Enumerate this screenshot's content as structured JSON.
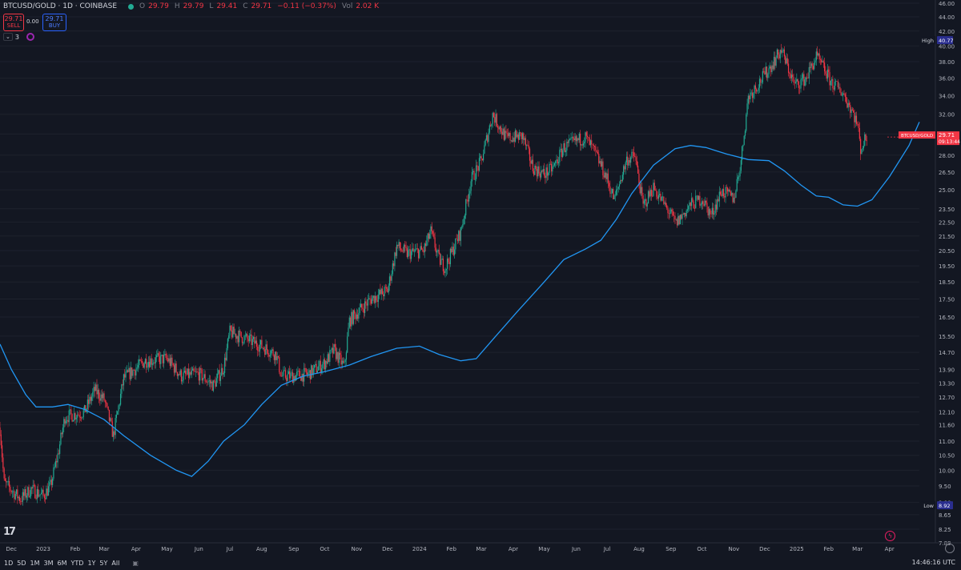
{
  "header": {
    "symbol": "BTCUSD/GOLD · 1D · COINBASE",
    "o_label": "O",
    "o_value": "29.79",
    "h_label": "H",
    "h_value": "29.79",
    "l_label": "L",
    "l_value": "29.41",
    "c_label": "C",
    "c_value": "29.71",
    "change": "−0.11 (−0.37%)",
    "vol_label": "Vol",
    "vol_value": "2.02 K"
  },
  "trade": {
    "sell_price": "29.71",
    "sell_label": "SELL",
    "spread": "0.00",
    "buy_price": "29.71",
    "buy_label": "BUY"
  },
  "indicators": {
    "count": "3"
  },
  "price_axis": {
    "labels": [
      "46.00",
      "44.00",
      "42.00",
      "40.00",
      "38.00",
      "36.00",
      "34.00",
      "32.00",
      "30.00",
      "28.00",
      "26.50",
      "25.00",
      "23.50",
      "22.50",
      "21.50",
      "20.50",
      "19.50",
      "18.50",
      "17.50",
      "16.50",
      "15.50",
      "14.70",
      "13.90",
      "13.30",
      "12.70",
      "12.10",
      "11.60",
      "11.00",
      "10.50",
      "10.00",
      "9.50",
      "9.00",
      "8.65",
      "8.25",
      "7.89"
    ],
    "high_label": "High",
    "high_value": "40.77",
    "low_label": "Low",
    "low_value": "8.92",
    "current_symbol": "BTCUSD/GOLD",
    "current_value": "29.71",
    "current_countdown": "09:13:44"
  },
  "time_axis": [
    "Dec",
    "2023",
    "Feb",
    "Mar",
    "Apr",
    "May",
    "Jun",
    "Jul",
    "Aug",
    "Sep",
    "Oct",
    "Nov",
    "Dec",
    "2024",
    "Feb",
    "Mar",
    "Apr",
    "May",
    "Jun",
    "Jul",
    "Aug",
    "Sep",
    "Oct",
    "Nov",
    "Dec",
    "2025",
    "Feb",
    "Mar",
    "Apr"
  ],
  "timeframes": [
    "1D",
    "5D",
    "1M",
    "3M",
    "6M",
    "YTD",
    "1Y",
    "5Y",
    "All"
  ],
  "clock": "14:46:16 UTC",
  "colors": {
    "up": "#22ab94",
    "down": "#f23645",
    "ma": "#2196f3",
    "bg": "#131722"
  },
  "chart_data": {
    "type": "candlestick",
    "scale": "log",
    "ylim": [
      7.89,
      46.0
    ],
    "x_range": [
      "2022-11-20",
      "2025-04-30"
    ],
    "price_path": [
      [
        "2022-11-20",
        11.5
      ],
      [
        "2022-11-24",
        9.6
      ],
      [
        "2022-12-10",
        9.1
      ],
      [
        "2022-12-20",
        9.4
      ],
      [
        "2023-01-01",
        9.2
      ],
      [
        "2023-01-08",
        9.5
      ],
      [
        "2023-01-15",
        10.5
      ],
      [
        "2023-01-22",
        11.9
      ],
      [
        "2023-02-10",
        12.1
      ],
      [
        "2023-02-20",
        13.0
      ],
      [
        "2023-03-01",
        12.6
      ],
      [
        "2023-03-10",
        11.2
      ],
      [
        "2023-03-20",
        13.5
      ],
      [
        "2023-04-10",
        14.3
      ],
      [
        "2023-05-01",
        14.4
      ],
      [
        "2023-05-15",
        13.6
      ],
      [
        "2023-06-01",
        13.7
      ],
      [
        "2023-06-15",
        13.2
      ],
      [
        "2023-06-25",
        14.0
      ],
      [
        "2023-07-01",
        15.7
      ],
      [
        "2023-07-15",
        15.4
      ],
      [
        "2023-08-01",
        15.0
      ],
      [
        "2023-08-15",
        14.6
      ],
      [
        "2023-08-20",
        13.6
      ],
      [
        "2023-09-01",
        13.6
      ],
      [
        "2023-09-15",
        13.7
      ],
      [
        "2023-10-01",
        14.2
      ],
      [
        "2023-10-10",
        14.8
      ],
      [
        "2023-10-20",
        14.0
      ],
      [
        "2023-10-25",
        16.3
      ],
      [
        "2023-11-01",
        16.7
      ],
      [
        "2023-11-15",
        17.5
      ],
      [
        "2023-12-01",
        18.0
      ],
      [
        "2023-12-10",
        20.8
      ],
      [
        "2023-12-20",
        20.3
      ],
      [
        "2024-01-05",
        20.5
      ],
      [
        "2024-01-12",
        21.8
      ],
      [
        "2024-01-20",
        19.9
      ],
      [
        "2024-01-26",
        19.4
      ],
      [
        "2024-02-10",
        21.8
      ],
      [
        "2024-02-20",
        25.8
      ],
      [
        "2024-03-01",
        27.5
      ],
      [
        "2024-03-12",
        32.0
      ],
      [
        "2024-03-25",
        29.6
      ],
      [
        "2024-04-10",
        29.8
      ],
      [
        "2024-04-20",
        26.9
      ],
      [
        "2024-05-01",
        26.3
      ],
      [
        "2024-05-10",
        26.9
      ],
      [
        "2024-05-20",
        28.7
      ],
      [
        "2024-06-01",
        29.3
      ],
      [
        "2024-06-10",
        29.7
      ],
      [
        "2024-06-20",
        28.1
      ],
      [
        "2024-07-01",
        25.9
      ],
      [
        "2024-07-08",
        24.2
      ],
      [
        "2024-07-20",
        27.6
      ],
      [
        "2024-07-28",
        27.9
      ],
      [
        "2024-08-05",
        23.7
      ],
      [
        "2024-08-15",
        25.2
      ],
      [
        "2024-08-25",
        23.9
      ],
      [
        "2024-09-06",
        22.4
      ],
      [
        "2024-09-20",
        23.8
      ],
      [
        "2024-10-01",
        24.3
      ],
      [
        "2024-10-10",
        23.0
      ],
      [
        "2024-10-20",
        24.9
      ],
      [
        "2024-11-01",
        24.3
      ],
      [
        "2024-11-08",
        27.5
      ],
      [
        "2024-11-15",
        33.9
      ],
      [
        "2024-11-25",
        35.4
      ],
      [
        "2024-12-05",
        37.1
      ],
      [
        "2024-12-17",
        39.5
      ],
      [
        "2024-12-30",
        35.2
      ],
      [
        "2025-01-10",
        36.0
      ],
      [
        "2025-01-20",
        38.6
      ],
      [
        "2025-01-28",
        37.0
      ],
      [
        "2025-02-03",
        35.6
      ],
      [
        "2025-02-15",
        34.3
      ],
      [
        "2025-02-25",
        32.1
      ],
      [
        "2025-03-01",
        30.9
      ],
      [
        "2025-03-04",
        28.6
      ],
      [
        "2025-03-10",
        29.71
      ]
    ],
    "moving_average": [
      [
        "2022-11-20",
        15.1
      ],
      [
        "2022-12-01",
        13.9
      ],
      [
        "2022-12-15",
        12.8
      ],
      [
        "2022-12-25",
        12.3
      ],
      [
        "2023-01-10",
        12.3
      ],
      [
        "2023-01-25",
        12.4
      ],
      [
        "2023-02-10",
        12.2
      ],
      [
        "2023-03-01",
        11.8
      ],
      [
        "2023-03-20",
        11.2
      ],
      [
        "2023-04-15",
        10.5
      ],
      [
        "2023-05-10",
        10.0
      ],
      [
        "2023-05-25",
        9.8
      ],
      [
        "2023-06-10",
        10.3
      ],
      [
        "2023-06-25",
        11.0
      ],
      [
        "2023-07-15",
        11.6
      ],
      [
        "2023-08-01",
        12.4
      ],
      [
        "2023-08-20",
        13.2
      ],
      [
        "2023-09-10",
        13.6
      ],
      [
        "2023-10-01",
        13.8
      ],
      [
        "2023-10-25",
        14.1
      ],
      [
        "2023-11-15",
        14.5
      ],
      [
        "2023-12-10",
        14.9
      ],
      [
        "2024-01-01",
        15.0
      ],
      [
        "2024-01-20",
        14.6
      ],
      [
        "2024-02-10",
        14.3
      ],
      [
        "2024-02-25",
        14.4
      ],
      [
        "2024-03-15",
        15.5
      ],
      [
        "2024-04-05",
        16.8
      ],
      [
        "2024-05-01",
        18.5
      ],
      [
        "2024-05-20",
        19.9
      ],
      [
        "2024-06-10",
        20.6
      ],
      [
        "2024-06-25",
        21.2
      ],
      [
        "2024-07-10",
        22.7
      ],
      [
        "2024-07-25",
        24.7
      ],
      [
        "2024-08-15",
        27.1
      ],
      [
        "2024-09-05",
        28.6
      ],
      [
        "2024-09-20",
        28.9
      ],
      [
        "2024-10-05",
        28.7
      ],
      [
        "2024-10-25",
        28.1
      ],
      [
        "2024-11-15",
        27.6
      ],
      [
        "2024-12-05",
        27.5
      ],
      [
        "2024-12-20",
        26.6
      ],
      [
        "2025-01-05",
        25.4
      ],
      [
        "2025-01-20",
        24.5
      ],
      [
        "2025-02-01",
        24.4
      ],
      [
        "2025-02-15",
        23.8
      ],
      [
        "2025-03-01",
        23.7
      ],
      [
        "2025-03-15",
        24.2
      ],
      [
        "2025-04-01",
        26.1
      ],
      [
        "2025-04-20",
        28.9
      ],
      [
        "2025-04-30",
        31.2
      ]
    ]
  }
}
